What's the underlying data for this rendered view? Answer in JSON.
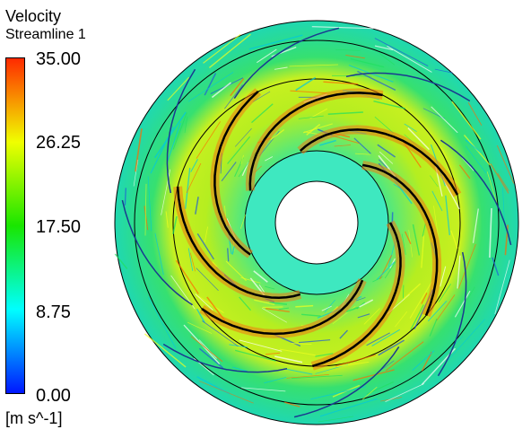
{
  "legend": {
    "title": "Velocity",
    "subtitle": "Streamline 1",
    "ticks": [
      "35.00",
      "26.25",
      "17.50",
      "8.75",
      "0.00"
    ],
    "units": "[m s^-1]",
    "colors": [
      "#ff2a00",
      "#f0ff00",
      "#19e600",
      "#00ffff",
      "#0016ff"
    ]
  },
  "plot": {
    "blade_count": 7,
    "diffuser_vane_count": 8
  }
}
